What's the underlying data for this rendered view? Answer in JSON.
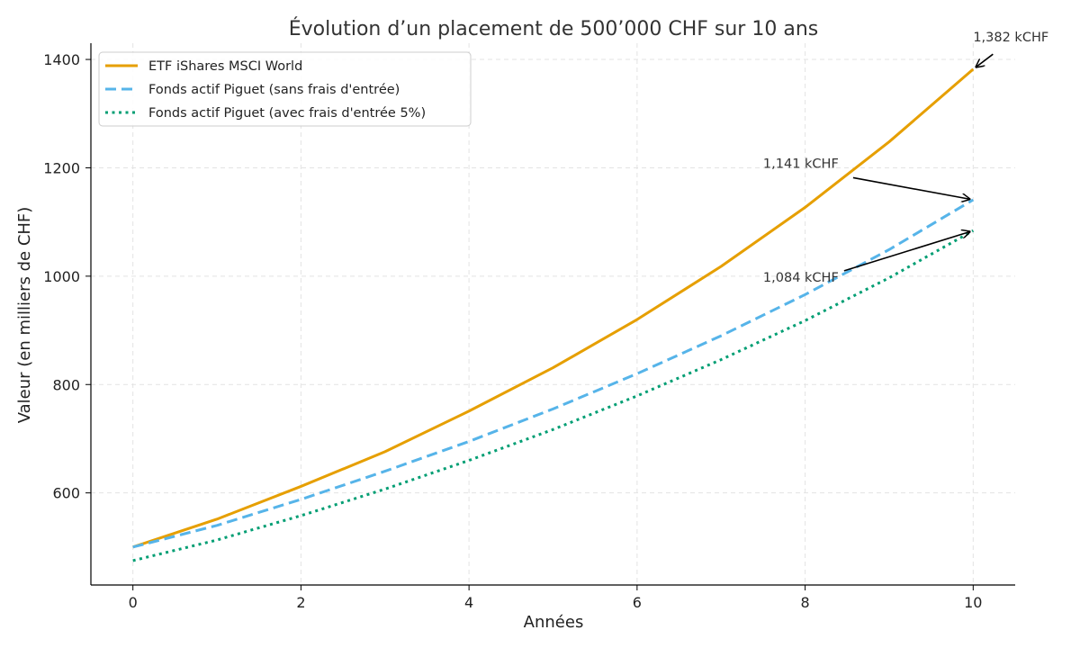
{
  "chart_data": {
    "type": "line",
    "title": "Évolution d’un placement de 500’000 CHF sur 10 ans",
    "xlabel": "Années",
    "ylabel": "Valeur (en milliers de CHF)",
    "xlim": [
      -0.5,
      10.5
    ],
    "ylim": [
      430,
      1430
    ],
    "xticks": [
      0,
      2,
      4,
      6,
      8,
      10
    ],
    "yticks": [
      600,
      800,
      1000,
      1200,
      1400
    ],
    "grid": true,
    "legend_position": "top-left",
    "x": [
      0,
      1,
      2,
      3,
      4,
      5,
      6,
      7,
      8,
      9,
      10
    ],
    "series": [
      {
        "name": "ETF iShares MSCI World",
        "color": "#E69F00",
        "style": "solid",
        "values": [
          500,
          551.5,
          612,
          676,
          751,
          831,
          920,
          1018,
          1127,
          1248,
          1382
        ]
      },
      {
        "name": "Fonds actif Piguet (sans frais d'entrée)",
        "color": "#56B4E9",
        "style": "dashed",
        "values": [
          500,
          540,
          588,
          640,
          695,
          755,
          820,
          890,
          966,
          1049,
          1141
        ]
      },
      {
        "name": "Fonds actif Piguet (avec frais d'entrée 5%)",
        "color": "#009E73",
        "style": "dotted",
        "values": [
          475,
          513,
          558,
          607,
          660,
          717,
          779,
          846,
          918,
          997,
          1084
        ]
      }
    ],
    "annotations": [
      {
        "text": "1,382 kCHF",
        "x": 10,
        "y": 1382,
        "text_x": 10.0,
        "text_y": 1433
      },
      {
        "text": "1,141 kCHF",
        "x": 10,
        "y": 1141,
        "text_x": 7.5,
        "text_y": 1200
      },
      {
        "text": "1,084 kCHF",
        "x": 10,
        "y": 1084,
        "text_x": 7.5,
        "text_y": 990
      }
    ]
  }
}
